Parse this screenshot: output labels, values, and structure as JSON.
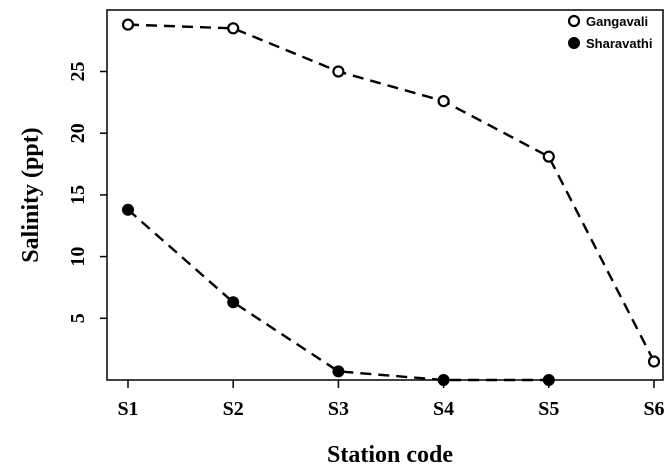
{
  "chart_data": {
    "type": "line",
    "xlabel": "Station code",
    "ylabel": "Salinity (ppt)",
    "categories": [
      "S1",
      "S2",
      "S3",
      "S4",
      "S5",
      "S6"
    ],
    "yticks": [
      5,
      10,
      15,
      20,
      25
    ],
    "ylim": [
      0,
      29.5
    ],
    "grid": false,
    "legend_position": "top-right",
    "line_style": "dashed",
    "colors": {
      "line": "#000000",
      "open_marker_fill": "#ffffff",
      "filled_marker_fill": "#000000"
    },
    "series": [
      {
        "name": "Gangavali",
        "marker": "open-circle",
        "values": [
          28.8,
          28.5,
          25.0,
          22.6,
          18.1,
          1.5
        ]
      },
      {
        "name": "Sharavathi",
        "marker": "filled-circle",
        "values": [
          13.8,
          6.3,
          0.7,
          0.0,
          0.0,
          null
        ]
      }
    ]
  }
}
